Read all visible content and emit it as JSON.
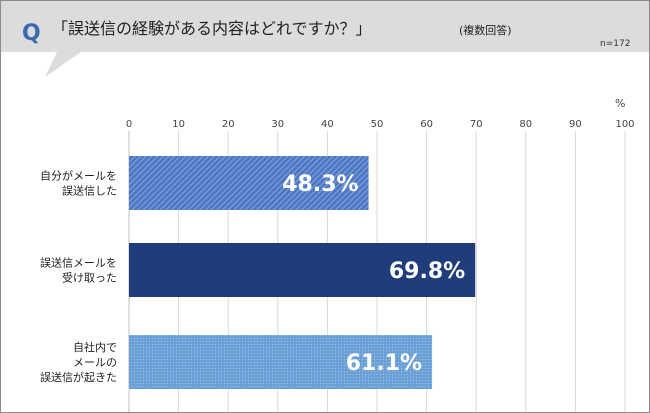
{
  "header": {
    "q_mark": "Q",
    "title": "「誤送信の経験がある内容はどれですか？」",
    "subtitle": "(複数回答)",
    "sample_size": "n=172"
  },
  "colors": {
    "header_bg": "#dcdcdc",
    "q_mark": "#3a6ab0",
    "gridline": "#d9d9d9"
  },
  "chart_data": {
    "type": "bar",
    "orientation": "horizontal",
    "unit": "%",
    "xlim": [
      0,
      100
    ],
    "ticks": [
      "0",
      "10",
      "20",
      "30",
      "40",
      "50",
      "60",
      "70",
      "80",
      "90",
      "100"
    ],
    "grid": true,
    "categories": [
      [
        "自分がメールを",
        "誤送信した"
      ],
      [
        "誤送信メールを",
        "受け取った"
      ],
      [
        "自社内で",
        "メールの",
        "誤送信が起きた"
      ]
    ],
    "values": [
      48.3,
      69.8,
      61.1
    ],
    "labels": [
      "48.3%",
      "69.8%",
      "61.1%"
    ],
    "bar_colors": [
      "#4f78c4",
      "#1f3d7a",
      "#6a9fd6"
    ],
    "bar_patterns": [
      "diagonal-stripes",
      "solid",
      "dots"
    ]
  }
}
